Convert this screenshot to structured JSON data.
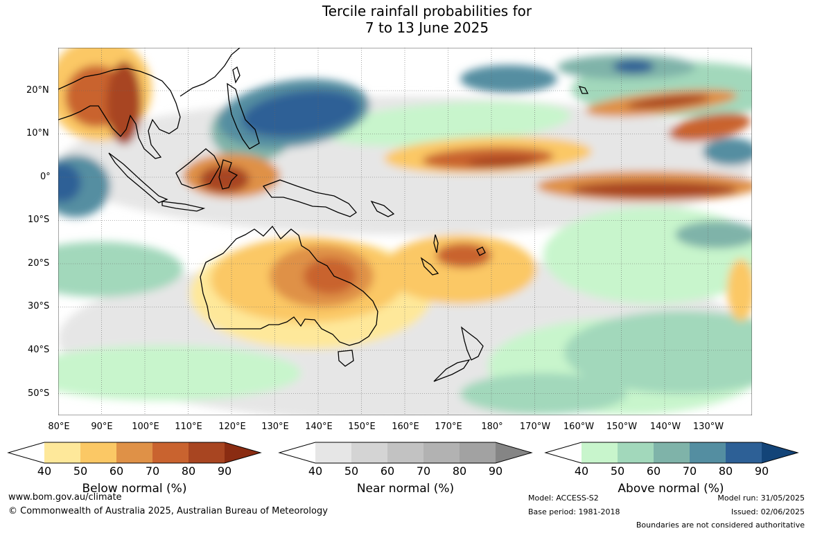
{
  "title": {
    "line1": "Tercile rainfall probabilities for",
    "line2": "7 to 13 June 2025"
  },
  "map": {
    "lat_labels": [
      "20°N",
      "10°N",
      "0°",
      "10°S",
      "20°S",
      "30°S",
      "40°S",
      "50°S"
    ],
    "lon_labels": [
      "80°E",
      "90°E",
      "100°E",
      "110°E",
      "120°E",
      "130°E",
      "140°E",
      "150°E",
      "160°E",
      "170°E",
      "180°",
      "170°W",
      "160°W",
      "150°W",
      "140°W",
      "130°W"
    ]
  },
  "legends": [
    {
      "title": "Below normal (%)",
      "ticks": [
        "40",
        "50",
        "60",
        "70",
        "80",
        "90"
      ],
      "colors": [
        "#ffffff",
        "#fee89a",
        "#fbc865",
        "#df9147",
        "#c9632f",
        "#a84521",
        "#8a2c12"
      ]
    },
    {
      "title": "Near normal (%)",
      "ticks": [
        "40",
        "50",
        "60",
        "70",
        "80",
        "90"
      ],
      "colors": [
        "#ffffff",
        "#e6e6e6",
        "#d4d4d4",
        "#c2c2c2",
        "#b2b2b2",
        "#a2a2a2",
        "#858585"
      ]
    },
    {
      "title": "Above normal (%)",
      "ticks": [
        "40",
        "50",
        "60",
        "70",
        "80",
        "90"
      ],
      "colors": [
        "#ffffff",
        "#c8f5cc",
        "#a2d8bb",
        "#7fb3a9",
        "#548ea1",
        "#2d6096",
        "#134478"
      ]
    }
  ],
  "footer": {
    "website": "www.bom.gov.au/climate",
    "copyright": "© Commonwealth of Australia 2025, Australian Bureau of Meteorology",
    "model": "Model: ACCESS-S2",
    "base_period": "Base period: 1981-2018",
    "model_run": "Model run: 31/05/2025",
    "issued": "Issued: 02/06/2025",
    "disclaimer": "Boundaries are not considered authoritative"
  }
}
